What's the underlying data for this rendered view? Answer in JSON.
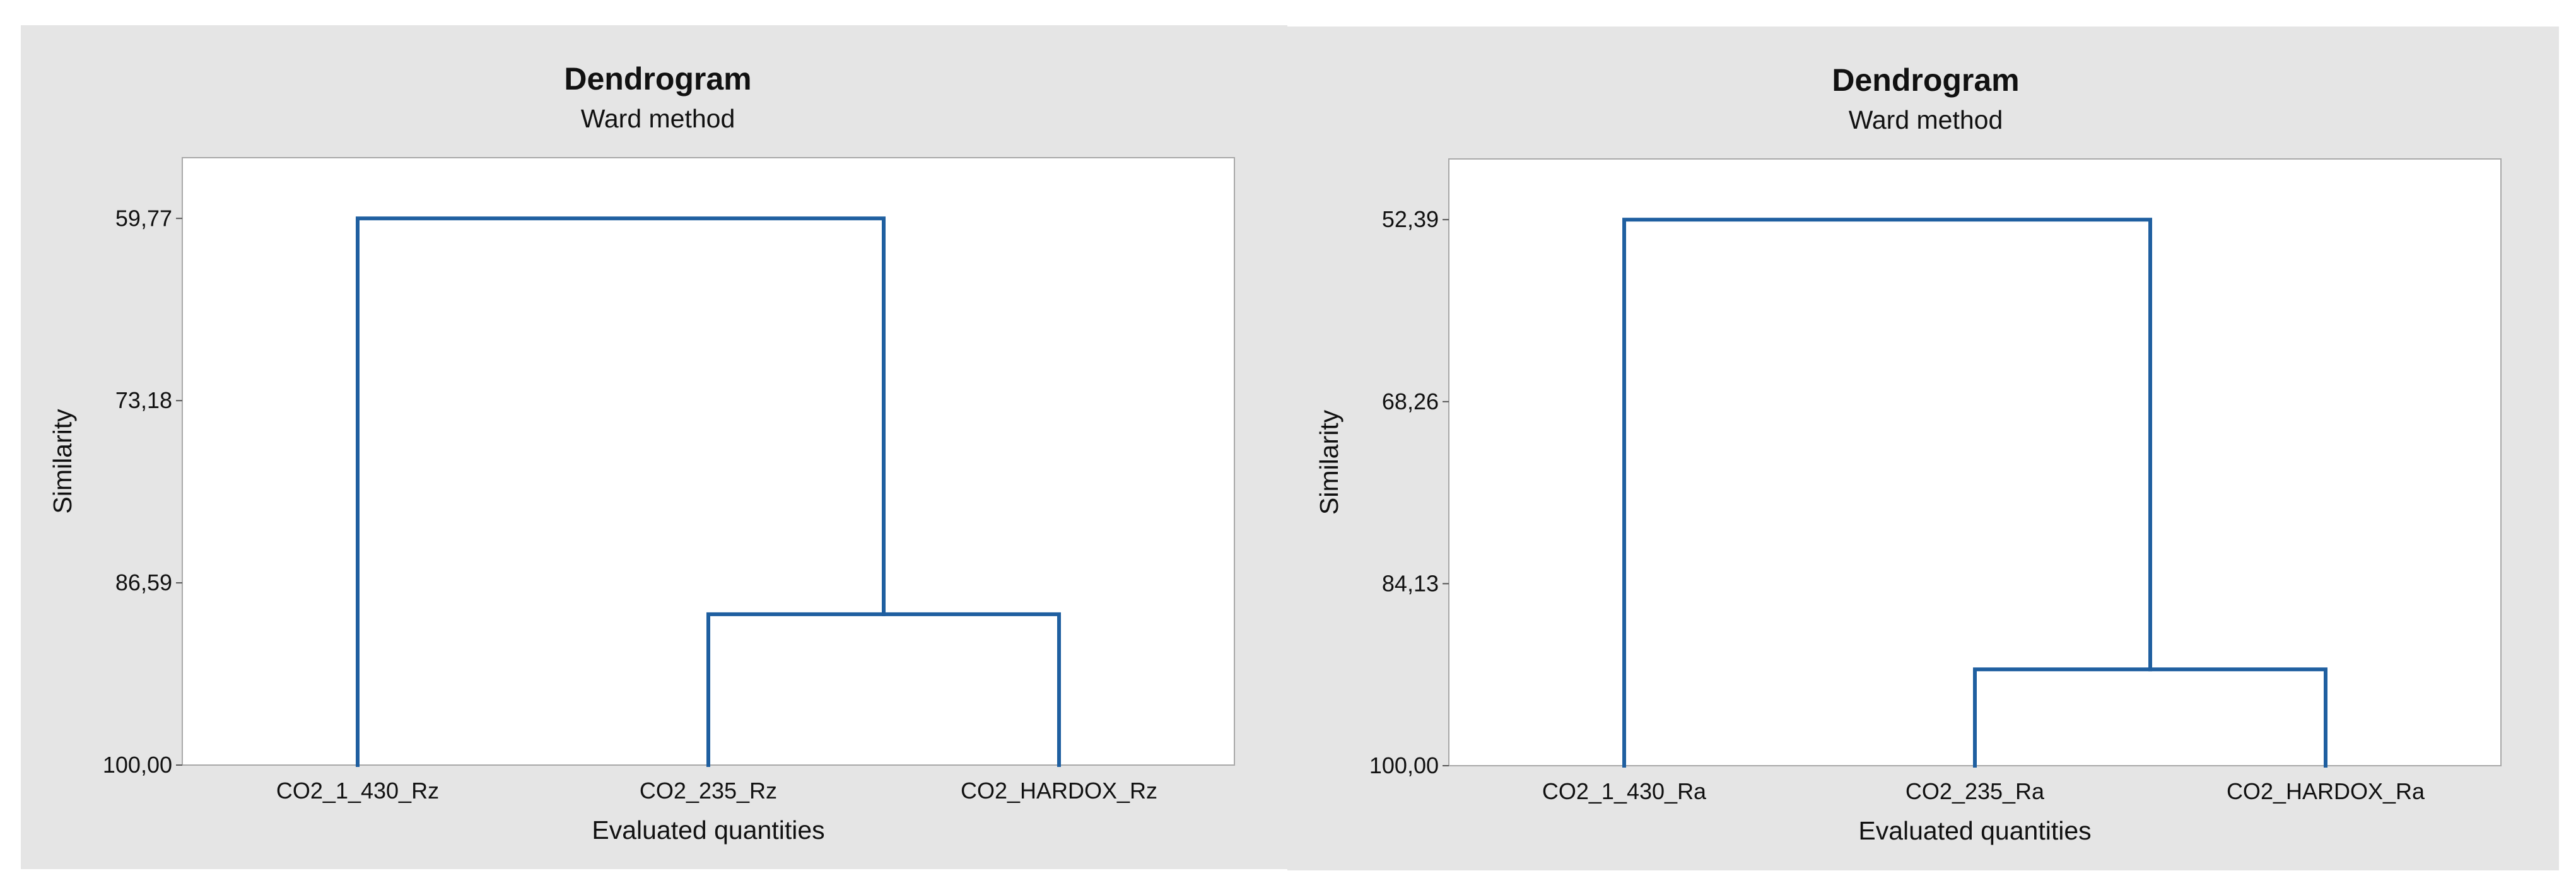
{
  "colors": {
    "panel_bg": "#e5e5e5",
    "plot_bg": "#ffffff",
    "line": "#1f5fa0"
  },
  "chart_data": [
    {
      "type": "dendrogram",
      "title": "Dendrogram",
      "subtitle": "Ward method",
      "xlabel": "Evaluated quantities",
      "ylabel": "Similarity",
      "yticks": [
        "59,77",
        "73,18",
        "86,59",
        "100,00"
      ],
      "ytick_values": [
        59.77,
        73.18,
        86.59,
        100.0
      ],
      "ylim": [
        55.3,
        100.0
      ],
      "leaves": [
        "CO2_1_430_Rz",
        "CO2_235_Rz",
        "CO2_HARDOX_Rz"
      ],
      "merges": [
        {
          "left": 1,
          "right": 2,
          "similarity": 88.9
        },
        {
          "left": 0,
          "right": 3,
          "similarity": 59.77
        }
      ],
      "grid": false
    },
    {
      "type": "dendrogram",
      "title": "Dendrogram",
      "subtitle": "Ward method",
      "xlabel": "Evaluated quantities",
      "ylabel": "Similarity",
      "yticks": [
        "52,39",
        "68,26",
        "84,13",
        "100,00"
      ],
      "ytick_values": [
        52.39,
        68.26,
        84.13,
        100.0
      ],
      "ylim": [
        47.1,
        100.0
      ],
      "leaves": [
        "CO2_1_430_Ra",
        "CO2_235_Ra",
        "CO2_HARDOX_Ra"
      ],
      "merges": [
        {
          "left": 1,
          "right": 2,
          "similarity": 91.6
        },
        {
          "left": 0,
          "right": 3,
          "similarity": 52.39
        }
      ],
      "grid": false
    }
  ]
}
